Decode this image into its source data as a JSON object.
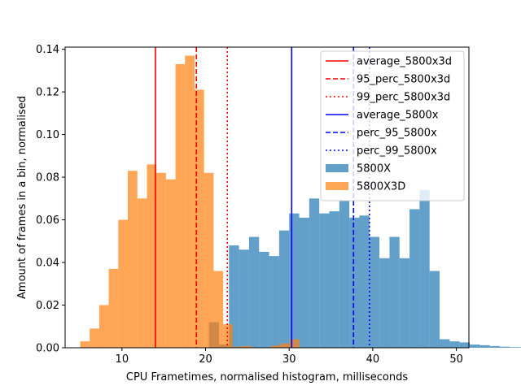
{
  "chart_data": {
    "type": "histogram",
    "xlabel": "CPU Frametimes, normalised histogram, milliseconds",
    "ylabel": "Amount of frames in a bin, normalised",
    "xlim": [
      3.2,
      51.5
    ],
    "ylim": [
      0,
      0.141
    ],
    "xticks": [
      "10",
      "20",
      "30",
      "40",
      "50"
    ],
    "xtick_values": [
      10,
      20,
      30,
      40,
      50
    ],
    "yticks": [
      "0.00",
      "0.02",
      "0.04",
      "0.06",
      "0.08",
      "0.10",
      "0.12",
      "0.14"
    ],
    "ytick_values": [
      0,
      0.02,
      0.04,
      0.06,
      0.08,
      0.1,
      0.12,
      0.14
    ],
    "legend_position": "top-right",
    "grid": false,
    "histograms": [
      {
        "name": "5800X",
        "color": "#1f77b4",
        "alpha": 0.7,
        "bin_start": 19.2,
        "bin_width": 1.2,
        "values": [
          0.0002,
          0.012,
          0.0015,
          0.048,
          0.046,
          0.052,
          0.045,
          0.043,
          0.055,
          0.063,
          0.061,
          0.07,
          0.063,
          0.064,
          0.069,
          0.061,
          0.062,
          0.052,
          0.042,
          0.052,
          0.042,
          0.065,
          0.074,
          0.036,
          0.004,
          0.003,
          0.0025,
          0.0015,
          0.0012,
          0.0008,
          0.0005,
          0.0003,
          0.0002,
          0.0002,
          0.0001,
          0.0001
        ]
      },
      {
        "name": "5800X3D",
        "color": "#ff7f0e",
        "alpha": 0.7,
        "bin_start": 5.0,
        "bin_width": 1.14,
        "values": [
          0.003,
          0.009,
          0.02,
          0.037,
          0.06,
          0.083,
          0.07,
          0.086,
          0.082,
          0.079,
          0.133,
          0.137,
          0.121,
          0.082,
          0.036,
          0.011,
          0.0005,
          0.0008,
          0.0002,
          0.0001,
          0.001,
          0.002,
          0.004
        ]
      }
    ],
    "vlines": [
      {
        "name": "average_5800x3d",
        "x": 14.0,
        "color": "#ff0000",
        "style": "solid"
      },
      {
        "name": "95_perc_5800x3d",
        "x": 18.9,
        "color": "#ff0000",
        "style": "dashed"
      },
      {
        "name": "99_perc_5800x3d",
        "x": 22.6,
        "color": "#ff0000",
        "style": "dotted"
      },
      {
        "name": "average_5800x",
        "x": 30.3,
        "color": "#0000ff",
        "style": "solid"
      },
      {
        "name": "perc_95_5800x",
        "x": 37.7,
        "color": "#0000ff",
        "style": "dashed"
      },
      {
        "name": "perc_99_5800x",
        "x": 39.6,
        "color": "#0000ff",
        "style": "dotted"
      }
    ],
    "legend": [
      {
        "label": "average_5800x3d",
        "kind": "line",
        "color": "#ff0000",
        "style": "solid"
      },
      {
        "label": "95_perc_5800x3d",
        "kind": "line",
        "color": "#ff0000",
        "style": "dashed"
      },
      {
        "label": "99_perc_5800x3d",
        "kind": "line",
        "color": "#ff0000",
        "style": "dotted"
      },
      {
        "label": "average_5800x",
        "kind": "line",
        "color": "#0000ff",
        "style": "solid"
      },
      {
        "label": "perc_95_5800x",
        "kind": "line",
        "color": "#0000ff",
        "style": "dashed"
      },
      {
        "label": "perc_99_5800x",
        "kind": "line",
        "color": "#0000ff",
        "style": "dotted"
      },
      {
        "label": "5800X",
        "kind": "patch",
        "color": "#1f77b4"
      },
      {
        "label": "5800X3D",
        "kind": "patch",
        "color": "#ff7f0e"
      }
    ]
  }
}
